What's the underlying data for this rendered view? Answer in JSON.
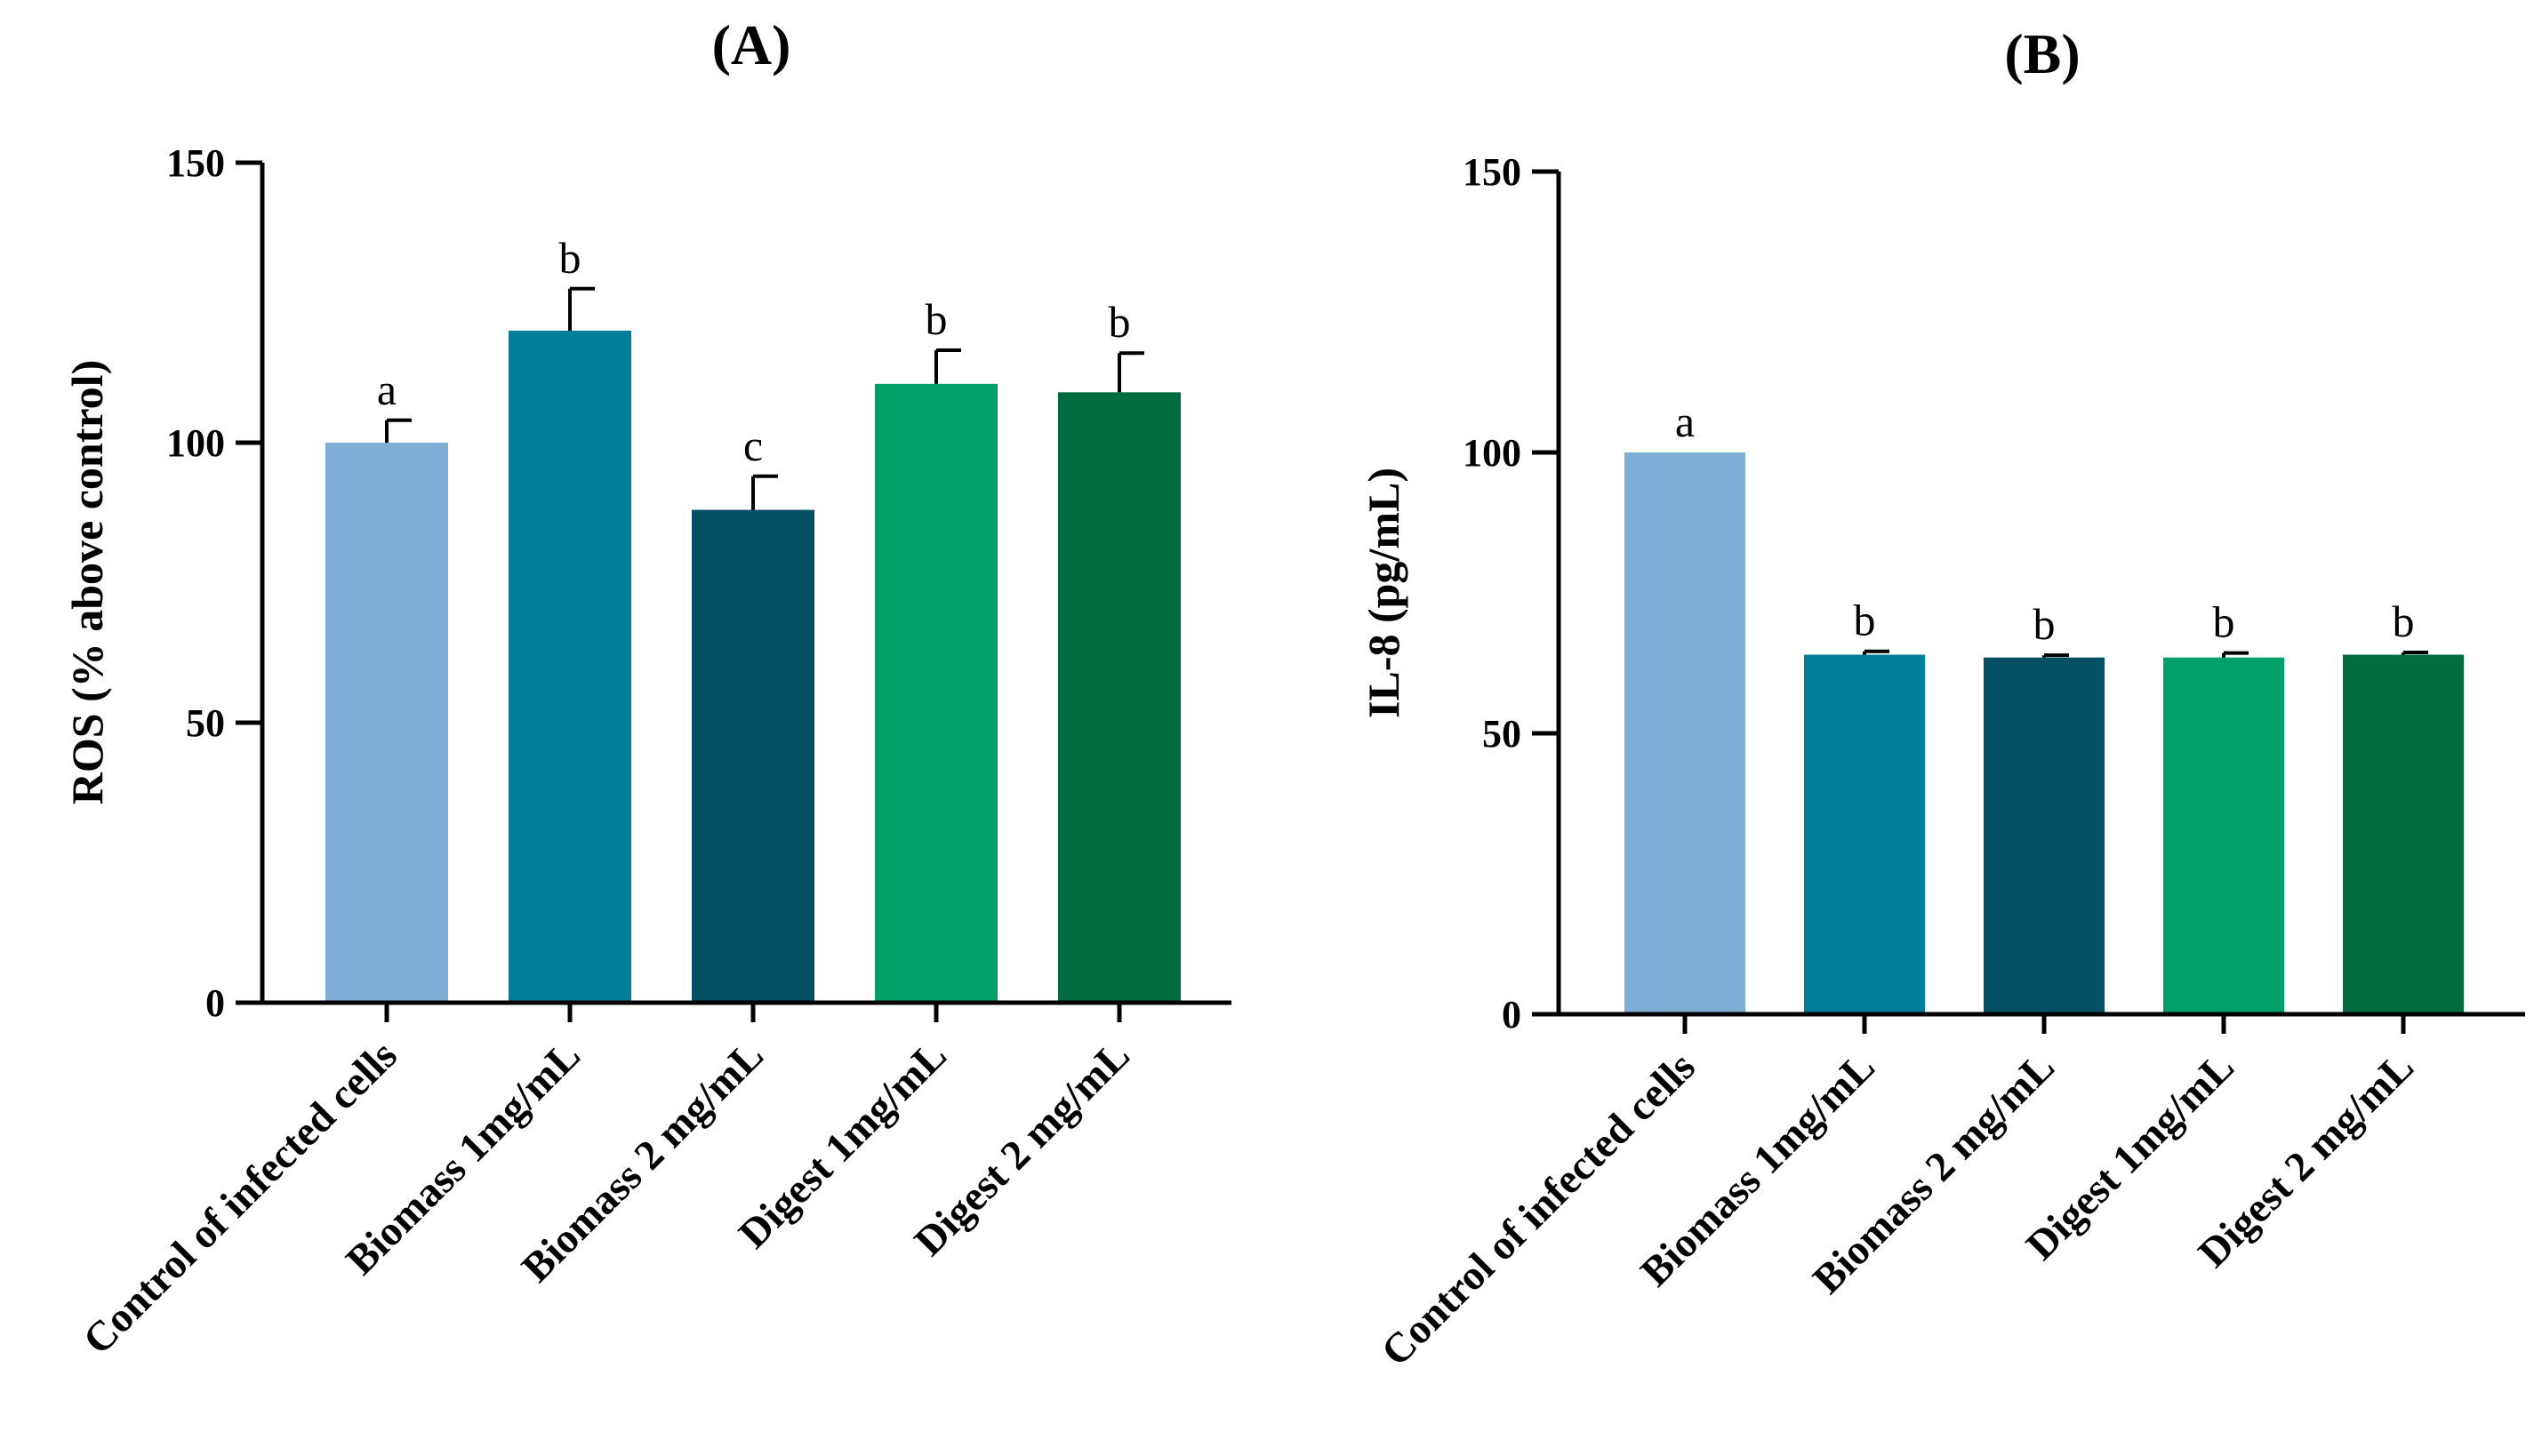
{
  "chart_data": [
    {
      "type": "bar",
      "title": "(A)",
      "xlabel": "",
      "ylabel": "ROS (% above control)",
      "ylim": [
        0,
        150
      ],
      "yticks": [
        0,
        50,
        100,
        150
      ],
      "categories": [
        "Control of infected cells",
        "Biomass 1mg/mL",
        "Biomass 2 mg/mL",
        "Digest 1mg/mL",
        "Digest 2 mg/mL"
      ],
      "values": [
        100,
        120,
        88,
        110.5,
        109
      ],
      "errors": [
        4,
        7.5,
        6,
        6,
        7
      ],
      "significance": [
        "a",
        "b",
        "c",
        "b",
        "b"
      ],
      "colors": [
        "#7eaed6",
        "#017e99",
        "#034f64",
        "#00a068",
        "#006c3f"
      ],
      "grid": false
    },
    {
      "type": "bar",
      "title": "(B)",
      "xlabel": "",
      "ylabel": "IL-8 (pg/mL)",
      "ylim": [
        0,
        150
      ],
      "yticks": [
        0,
        50,
        100,
        150
      ],
      "categories": [
        "Control of infected cells",
        "Biomass 1mg/mL",
        "Biomass 2 mg/mL",
        "Digest 1mg/mL",
        "Digest 2 mg/mL"
      ],
      "values": [
        100,
        64,
        63.5,
        63.5,
        64
      ],
      "errors": [
        0,
        0.6,
        0.4,
        0.8,
        0.4
      ],
      "significance": [
        "a",
        "b",
        "b",
        "b",
        "b"
      ],
      "colors": [
        "#7eaed6",
        "#017e99",
        "#034f64",
        "#00a068",
        "#006c3f"
      ],
      "grid": false
    }
  ]
}
